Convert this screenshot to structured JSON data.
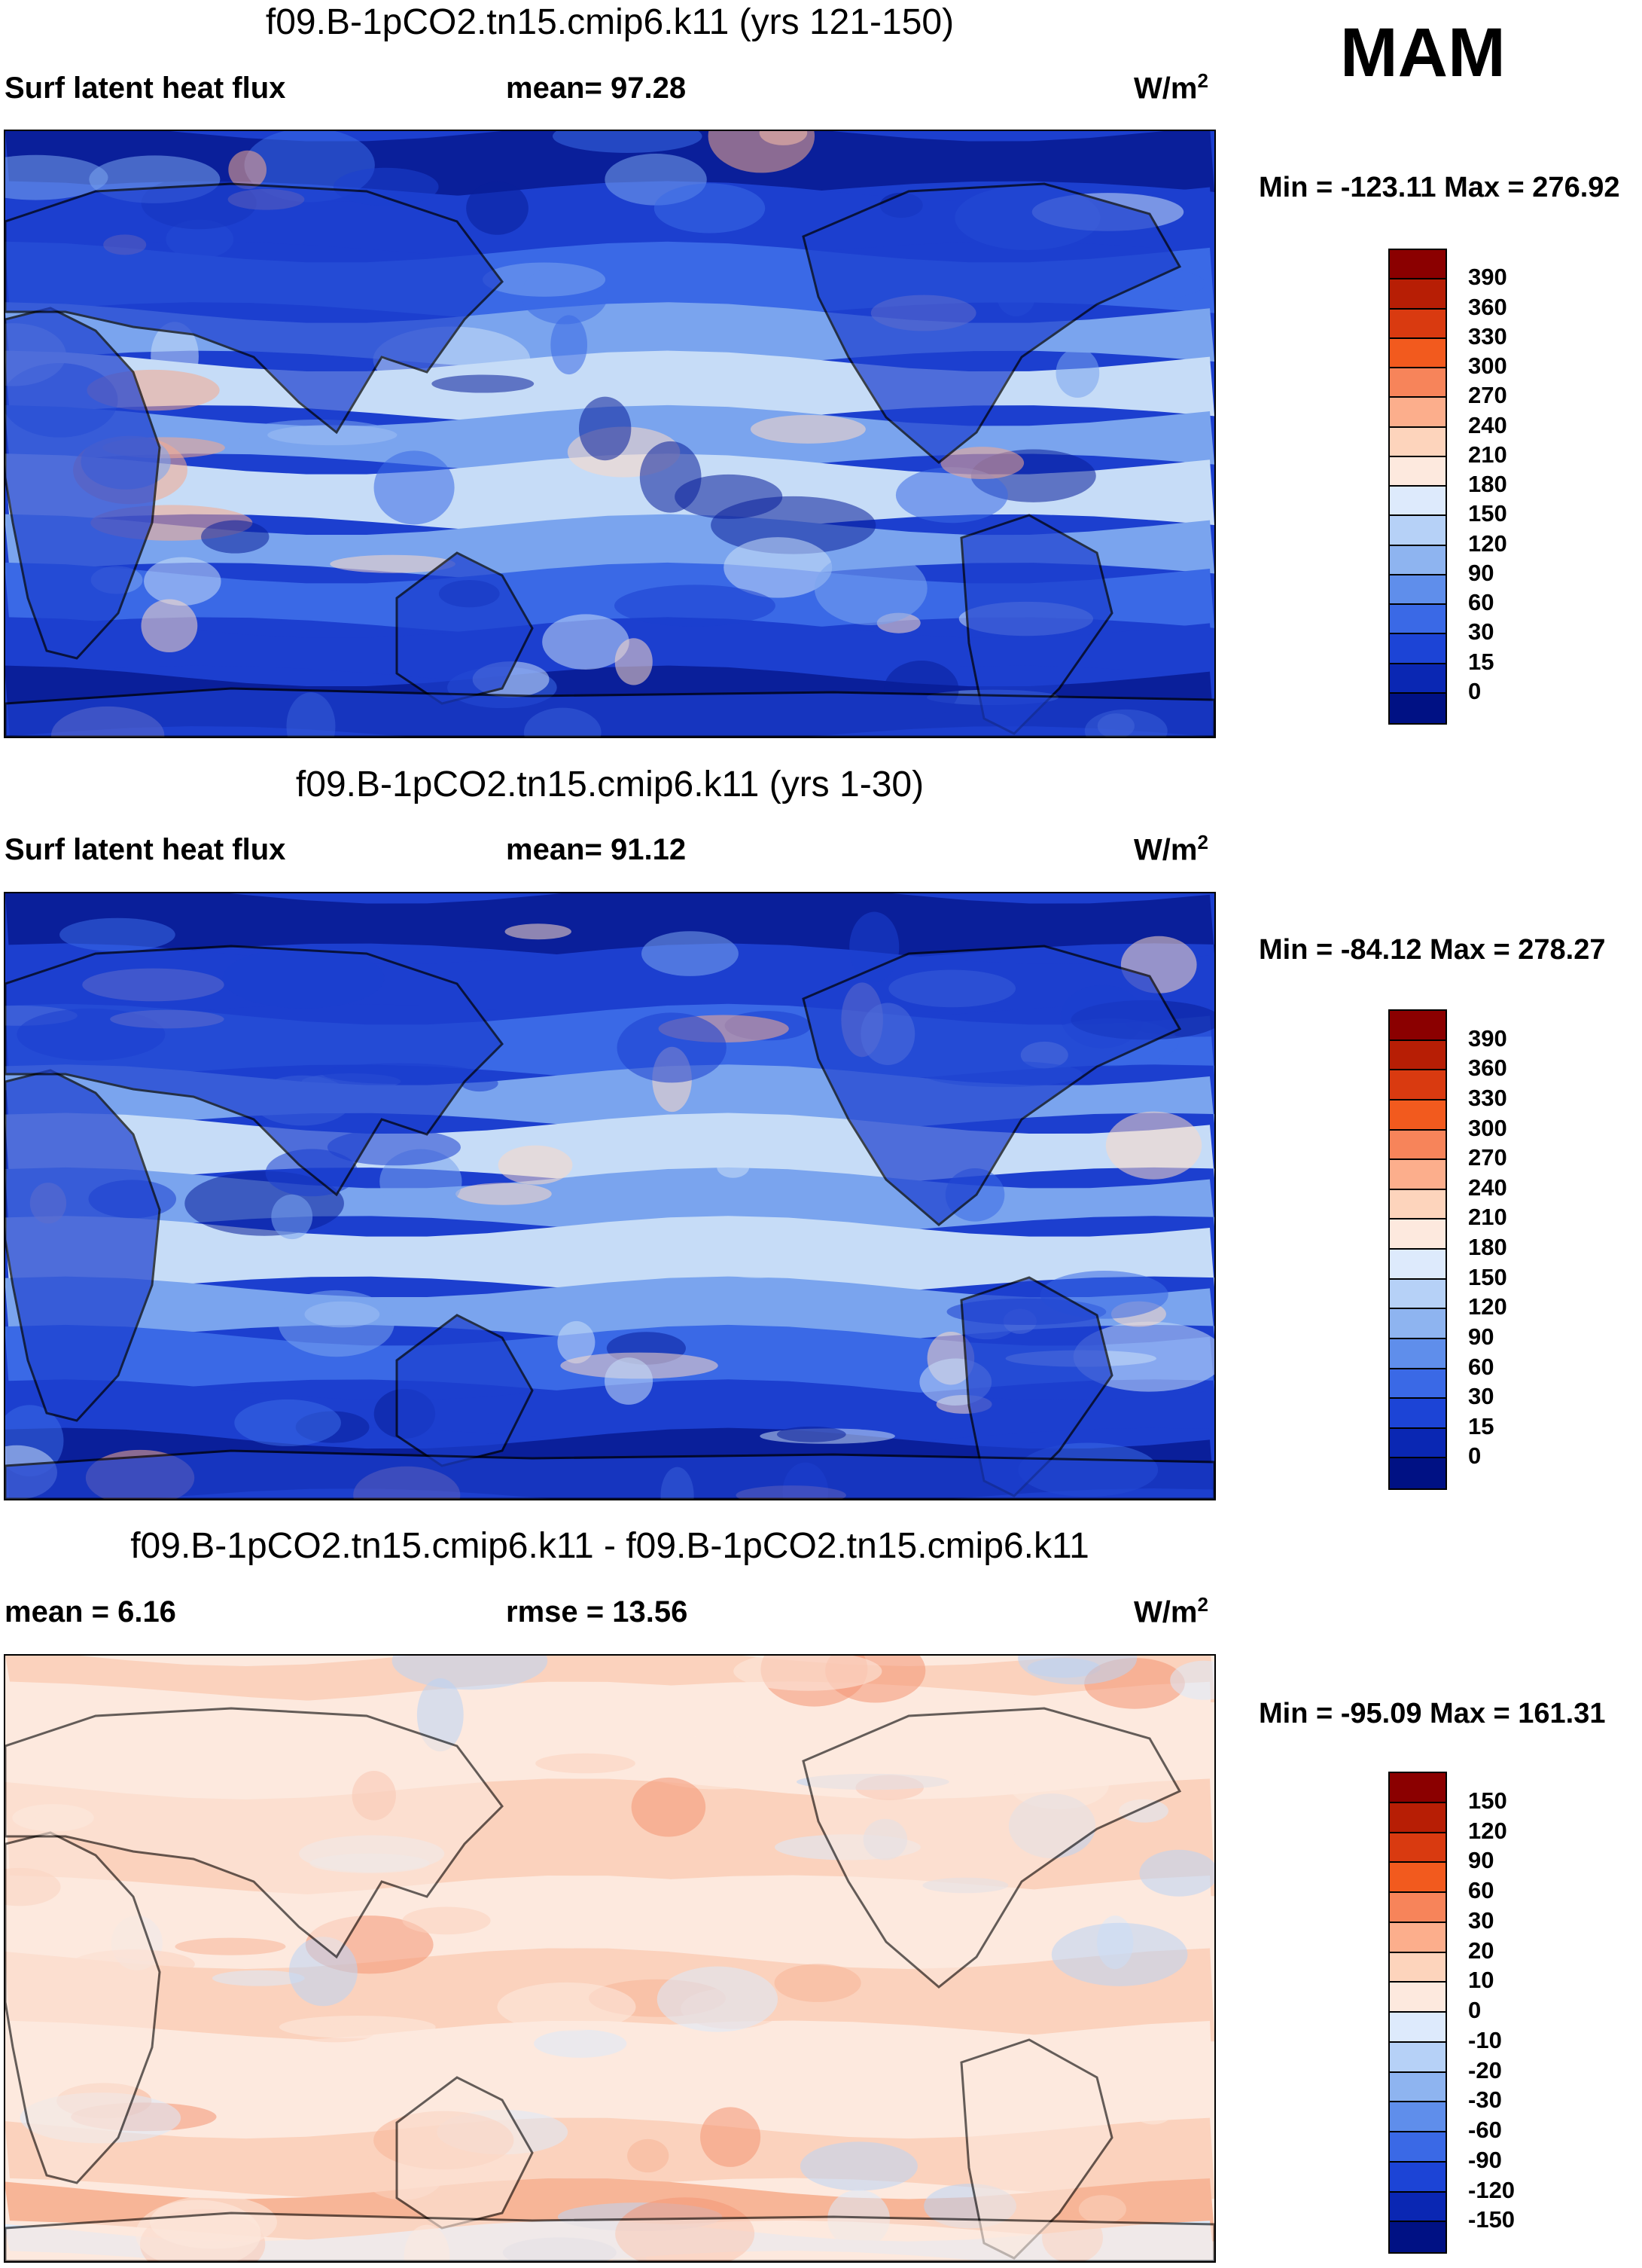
{
  "season": "MAM",
  "panels": [
    {
      "title": "f09.B-1pCO2.tn15.cmip6.k11 (yrs 121-150)",
      "left_label": "Surf latent heat flux",
      "mid_label": "mean=  97.28",
      "units": "W/m",
      "units_sup": "2",
      "minmax": "Min = -123.11 Max = 276.92",
      "ticks": [
        "390",
        "360",
        "330",
        "300",
        "270",
        "240",
        "210",
        "180",
        "150",
        "120",
        "90",
        "60",
        "30",
        "15",
        "0"
      ],
      "colors": [
        "#8b0000",
        "#b71e05",
        "#d93a10",
        "#f25a1e",
        "#f7845a",
        "#fcae8c",
        "#fdd4bc",
        "#fde9de",
        "#ddeafc",
        "#b6d1f7",
        "#8eb4f0",
        "#5f8eeb",
        "#3a69e6",
        "#1c44d6",
        "#0a27b3",
        "#001184"
      ],
      "map_palette": [
        "#0a1f9a",
        "#1c3fcf",
        "#3a69e6",
        "#7aa4ee",
        "#c6dcf7",
        "#fbd8c6",
        "#f6a98e"
      ]
    },
    {
      "title": "f09.B-1pCO2.tn15.cmip6.k11 (yrs 1-30)",
      "left_label": "Surf latent heat flux",
      "mid_label": "mean=  91.12",
      "units": "W/m",
      "units_sup": "2",
      "minmax": "Min = -84.12 Max = 278.27",
      "ticks": [
        "390",
        "360",
        "330",
        "300",
        "270",
        "240",
        "210",
        "180",
        "150",
        "120",
        "90",
        "60",
        "30",
        "15",
        "0"
      ],
      "colors": [
        "#8b0000",
        "#b71e05",
        "#d93a10",
        "#f25a1e",
        "#f7845a",
        "#fcae8c",
        "#fdd4bc",
        "#fde9de",
        "#ddeafc",
        "#b6d1f7",
        "#8eb4f0",
        "#5f8eeb",
        "#3a69e6",
        "#1c44d6",
        "#0a27b3",
        "#001184"
      ],
      "map_palette": [
        "#0a1f9a",
        "#1c3fcf",
        "#3a69e6",
        "#7aa4ee",
        "#c6dcf7",
        "#fbd8c6",
        "#f6a98e"
      ]
    },
    {
      "title": "f09.B-1pCO2.tn15.cmip6.k11 - f09.B-1pCO2.tn15.cmip6.k11",
      "left_label": "mean =   6.16",
      "mid_label": "rmse =  13.56",
      "units": "W/m",
      "units_sup": "2",
      "minmax": "Min = -95.09 Max = 161.31",
      "ticks": [
        "150",
        "120",
        "90",
        "60",
        "30",
        "20",
        "10",
        "0",
        "-10",
        "-20",
        "-30",
        "-60",
        "-90",
        "-120",
        "-150"
      ],
      "colors": [
        "#8b0000",
        "#b71e05",
        "#d93a10",
        "#f25a1e",
        "#f7845a",
        "#fcae8c",
        "#fdd4bc",
        "#fde9de",
        "#ddeafc",
        "#b6d1f7",
        "#8eb4f0",
        "#5f8eeb",
        "#3a69e6",
        "#1c44d6",
        "#0a27b3",
        "#001184"
      ],
      "map_palette": [
        "#bcd4f4",
        "#ddeafa",
        "#fde9de",
        "#fbd2bd",
        "#f7b597",
        "#f49574"
      ]
    }
  ]
}
